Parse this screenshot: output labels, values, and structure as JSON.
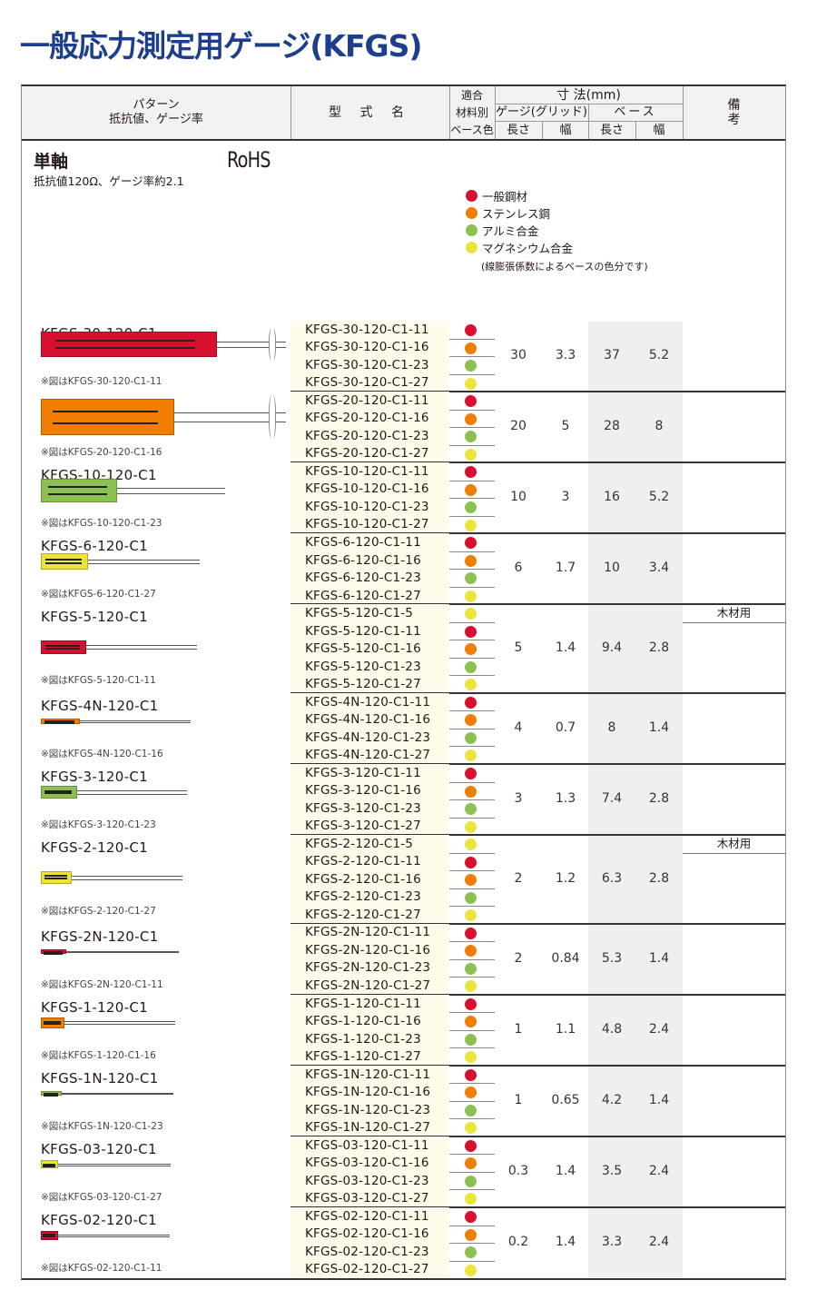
{
  "title": "一般応力測定用ゲージ(KFGS)",
  "header": {
    "pattern": "パターン",
    "pattern_sub": "抵抗値、ゲージ率",
    "model": "型 式 名",
    "material_1": "適合",
    "material_2": "材料別",
    "material_3": "ベース色",
    "dimensions": "寸 法(mm)",
    "gauge_grid": "ゲージ(グリッド)",
    "base": "ベース",
    "length": "長さ",
    "width": "幅",
    "remarks": "備 考"
  },
  "section": {
    "title": "単軸",
    "rohs": "RoHS",
    "spec": "抵抗値120Ω、ゲージ率約2.1"
  },
  "legend": {
    "items": [
      {
        "label": "一般鋼材",
        "color": "#d7102f"
      },
      {
        "label": "ステンレス鋼",
        "color": "#ef7d00"
      },
      {
        "label": "アルミ合金",
        "color": "#8cc152"
      },
      {
        "label": "マグネシウム合金",
        "color": "#ebe43a"
      }
    ],
    "note": "(線膨張係数によるベースの色分です)"
  },
  "colors": {
    "5": "#ebe43a",
    "11": "#d7102f",
    "16": "#ef7d00",
    "23": "#8cc152",
    "27": "#ebe43a",
    "title": "#1d3e8c",
    "model_bg": "#fdfbea",
    "base_bg": "#efefef"
  },
  "groups": [
    {
      "name": "KFGS-30-120-C1",
      "caption": "※図はKFGS-30-120-C1-11",
      "suffixes": [
        "11",
        "16",
        "23",
        "27"
      ],
      "models": [
        "KFGS-30-120-C1-11",
        "KFGS-30-120-C1-16",
        "KFGS-30-120-C1-23",
        "KFGS-30-120-C1-27"
      ],
      "gauge_length": "30",
      "gauge_width": "3.3",
      "base_length": "37",
      "base_width": "5.2",
      "remark": ""
    },
    {
      "name": "KFGS-20-120-C1",
      "caption": "※図はKFGS-20-120-C1-16",
      "suffixes": [
        "11",
        "16",
        "23",
        "27"
      ],
      "models": [
        "KFGS-20-120-C1-11",
        "KFGS-20-120-C1-16",
        "KFGS-20-120-C1-23",
        "KFGS-20-120-C1-27"
      ],
      "gauge_length": "20",
      "gauge_width": "5",
      "base_length": "28",
      "base_width": "8",
      "remark": ""
    },
    {
      "name": "KFGS-10-120-C1",
      "caption": "※図はKFGS-10-120-C1-23",
      "suffixes": [
        "11",
        "16",
        "23",
        "27"
      ],
      "models": [
        "KFGS-10-120-C1-11",
        "KFGS-10-120-C1-16",
        "KFGS-10-120-C1-23",
        "KFGS-10-120-C1-27"
      ],
      "gauge_length": "10",
      "gauge_width": "3",
      "base_length": "16",
      "base_width": "5.2",
      "remark": ""
    },
    {
      "name": "KFGS-6-120-C1",
      "caption": "※図はKFGS-6-120-C1-27",
      "suffixes": [
        "11",
        "16",
        "23",
        "27"
      ],
      "models": [
        "KFGS-6-120-C1-11",
        "KFGS-6-120-C1-16",
        "KFGS-6-120-C1-23",
        "KFGS-6-120-C1-27"
      ],
      "gauge_length": "6",
      "gauge_width": "1.7",
      "base_length": "10",
      "base_width": "3.4",
      "remark": ""
    },
    {
      "name": "KFGS-5-120-C1",
      "caption": "※図はKFGS-5-120-C1-11",
      "suffixes": [
        "5",
        "11",
        "16",
        "23",
        "27"
      ],
      "models": [
        "KFGS-5-120-C1-5",
        "KFGS-5-120-C1-11",
        "KFGS-5-120-C1-16",
        "KFGS-5-120-C1-23",
        "KFGS-5-120-C1-27"
      ],
      "gauge_length": "5",
      "gauge_width": "1.4",
      "base_length": "9.4",
      "base_width": "2.8",
      "remark": "木材用"
    },
    {
      "name": "KFGS-4N-120-C1",
      "caption": "※図はKFGS-4N-120-C1-16",
      "suffixes": [
        "11",
        "16",
        "23",
        "27"
      ],
      "models": [
        "KFGS-4N-120-C1-11",
        "KFGS-4N-120-C1-16",
        "KFGS-4N-120-C1-23",
        "KFGS-4N-120-C1-27"
      ],
      "gauge_length": "4",
      "gauge_width": "0.7",
      "base_length": "8",
      "base_width": "1.4",
      "remark": ""
    },
    {
      "name": "KFGS-3-120-C1",
      "caption": "※図はKFGS-3-120-C1-23",
      "suffixes": [
        "11",
        "16",
        "23",
        "27"
      ],
      "models": [
        "KFGS-3-120-C1-11",
        "KFGS-3-120-C1-16",
        "KFGS-3-120-C1-23",
        "KFGS-3-120-C1-27"
      ],
      "gauge_length": "3",
      "gauge_width": "1.3",
      "base_length": "7.4",
      "base_width": "2.8",
      "remark": ""
    },
    {
      "name": "KFGS-2-120-C1",
      "caption": "※図はKFGS-2-120-C1-27",
      "suffixes": [
        "5",
        "11",
        "16",
        "23",
        "27"
      ],
      "models": [
        "KFGS-2-120-C1-5",
        "KFGS-2-120-C1-11",
        "KFGS-2-120-C1-16",
        "KFGS-2-120-C1-23",
        "KFGS-2-120-C1-27"
      ],
      "gauge_length": "2",
      "gauge_width": "1.2",
      "base_length": "6.3",
      "base_width": "2.8",
      "remark": "木材用"
    },
    {
      "name": "KFGS-2N-120-C1",
      "caption": "※図はKFGS-2N-120-C1-11",
      "suffixes": [
        "11",
        "16",
        "23",
        "27"
      ],
      "models": [
        "KFGS-2N-120-C1-11",
        "KFGS-2N-120-C1-16",
        "KFGS-2N-120-C1-23",
        "KFGS-2N-120-C1-27"
      ],
      "gauge_length": "2",
      "gauge_width": "0.84",
      "base_length": "5.3",
      "base_width": "1.4",
      "remark": ""
    },
    {
      "name": "KFGS-1-120-C1",
      "caption": "※図はKFGS-1-120-C1-16",
      "suffixes": [
        "11",
        "16",
        "23",
        "27"
      ],
      "models": [
        "KFGS-1-120-C1-11",
        "KFGS-1-120-C1-16",
        "KFGS-1-120-C1-23",
        "KFGS-1-120-C1-27"
      ],
      "gauge_length": "1",
      "gauge_width": "1.1",
      "base_length": "4.8",
      "base_width": "2.4",
      "remark": ""
    },
    {
      "name": "KFGS-1N-120-C1",
      "caption": "※図はKFGS-1N-120-C1-23",
      "suffixes": [
        "11",
        "16",
        "23",
        "27"
      ],
      "models": [
        "KFGS-1N-120-C1-11",
        "KFGS-1N-120-C1-16",
        "KFGS-1N-120-C1-23",
        "KFGS-1N-120-C1-27"
      ],
      "gauge_length": "1",
      "gauge_width": "0.65",
      "base_length": "4.2",
      "base_width": "1.4",
      "remark": ""
    },
    {
      "name": "KFGS-03-120-C1",
      "caption": "※図はKFGS-03-120-C1-27",
      "suffixes": [
        "11",
        "16",
        "23",
        "27"
      ],
      "models": [
        "KFGS-03-120-C1-11",
        "KFGS-03-120-C1-16",
        "KFGS-03-120-C1-23",
        "KFGS-03-120-C1-27"
      ],
      "gauge_length": "0.3",
      "gauge_width": "1.4",
      "base_length": "3.5",
      "base_width": "2.4",
      "remark": ""
    },
    {
      "name": "KFGS-02-120-C1",
      "caption": "※図はKFGS-02-120-C1-11",
      "suffixes": [
        "11",
        "16",
        "23",
        "27"
      ],
      "models": [
        "KFGS-02-120-C1-11",
        "KFGS-02-120-C1-16",
        "KFGS-02-120-C1-23",
        "KFGS-02-120-C1-27"
      ],
      "gauge_length": "0.2",
      "gauge_width": "1.4",
      "base_length": "3.3",
      "base_width": "2.4",
      "remark": ""
    }
  ]
}
